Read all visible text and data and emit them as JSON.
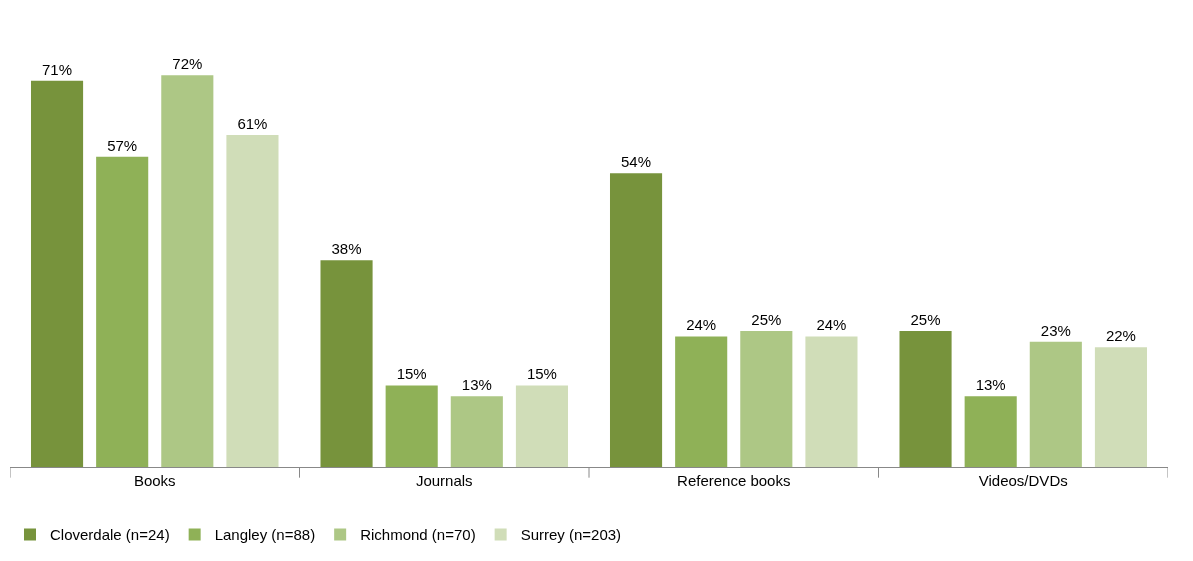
{
  "chart_data": {
    "type": "bar",
    "categories": [
      "Books",
      "Journals",
      "Reference books",
      "Videos/DVDs"
    ],
    "series": [
      {
        "name": "Cloverdale (n=24)",
        "color": "#77933c",
        "values": [
          71,
          38,
          54,
          25
        ],
        "value_labels": [
          "71%",
          "38%",
          "54%",
          "25%"
        ]
      },
      {
        "name": "Langley (n=88)",
        "color": "#8fb157",
        "values": [
          57,
          15,
          24,
          13
        ],
        "value_labels": [
          "57%",
          "15%",
          "24%",
          "13%"
        ]
      },
      {
        "name": "Richmond (n=70)",
        "color": "#adc785",
        "values": [
          72,
          13,
          25,
          23
        ],
        "value_labels": [
          "72%",
          "13%",
          "25%",
          "23%"
        ]
      },
      {
        "name": "Surrey (n=203)",
        "color": "#d0ddb8",
        "values": [
          61,
          15,
          24,
          22
        ],
        "value_labels": [
          "61%",
          "15%",
          "24%",
          "22%"
        ]
      }
    ],
    "legend": "bottom"
  }
}
